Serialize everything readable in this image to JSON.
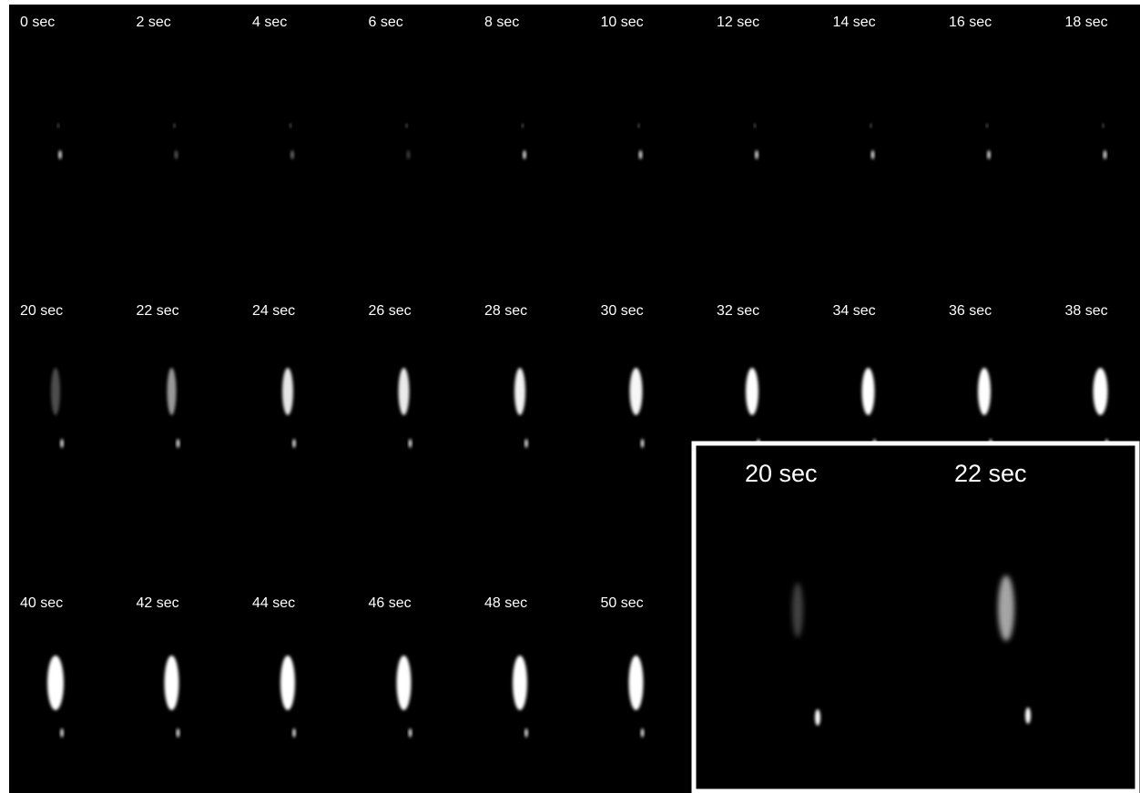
{
  "frames": {
    "rows": [
      [
        "0 sec",
        "2 sec",
        "4 sec",
        "6 sec",
        "8 sec",
        "10 sec",
        "12 sec",
        "14 sec",
        "16 sec",
        "18 sec"
      ],
      [
        "20 sec",
        "22 sec",
        "24 sec",
        "26 sec",
        "28 sec",
        "30 sec",
        "32 sec",
        "34 sec",
        "36 sec",
        "38 sec"
      ],
      [
        "40 sec",
        "42 sec",
        "44 sec",
        "46 sec",
        "48 sec",
        "50 sec"
      ]
    ]
  },
  "inset": {
    "labels": [
      "20 sec",
      "22 sec"
    ]
  }
}
